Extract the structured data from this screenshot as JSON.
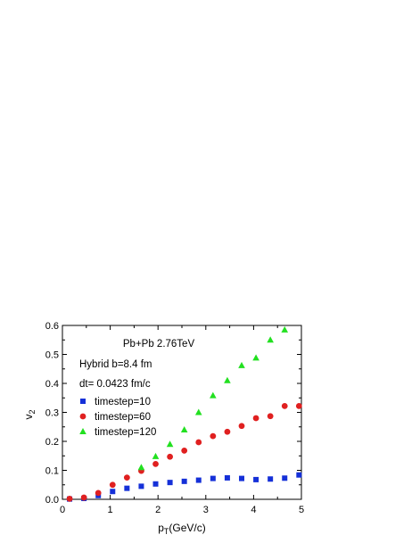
{
  "chart_data": {
    "type": "scatter",
    "xlabel_main": "p",
    "xlabel_sub": "T",
    "xlabel_rest": "(GeV/c)",
    "ylabel_main": "v",
    "ylabel_sub": "2",
    "xlim": [
      0,
      5
    ],
    "ylim": [
      0,
      0.6
    ],
    "xticks": [
      0,
      1,
      2,
      3,
      4,
      5
    ],
    "xtick_labels": [
      "0",
      "1",
      "2",
      "3",
      "4",
      "5"
    ],
    "yticks": [
      0.0,
      0.1,
      0.2,
      0.3,
      0.4,
      0.5,
      0.6
    ],
    "ytick_labels": [
      "0.0",
      "0.1",
      "0.2",
      "0.3",
      "0.4",
      "0.5",
      "0.6"
    ],
    "grid": false,
    "legend_position": "middle-left",
    "annotations": [
      "Pb+Pb 2.76TeV",
      "Hybrid b=8.4 fm",
      "dt= 0.0423 fm/c"
    ],
    "series": [
      {
        "name": "timestep=10",
        "marker": "square",
        "color": "#1530d8",
        "x": [
          0.15,
          0.45,
          0.75,
          1.05,
          1.35,
          1.65,
          1.95,
          2.25,
          2.55,
          2.85,
          3.15,
          3.45,
          3.75,
          4.05,
          4.35,
          4.65,
          4.95
        ],
        "y": [
          0.001,
          0.003,
          0.013,
          0.027,
          0.038,
          0.045,
          0.053,
          0.058,
          0.062,
          0.066,
          0.072,
          0.074,
          0.072,
          0.068,
          0.07,
          0.073,
          0.084
        ]
      },
      {
        "name": "timestep=60",
        "marker": "circle",
        "color": "#e02020",
        "x": [
          0.15,
          0.45,
          0.75,
          1.05,
          1.35,
          1.65,
          1.95,
          2.25,
          2.55,
          2.85,
          3.15,
          3.45,
          3.75,
          4.05,
          4.35,
          4.65,
          4.95
        ],
        "y": [
          0.002,
          0.006,
          0.022,
          0.05,
          0.075,
          0.098,
          0.122,
          0.147,
          0.168,
          0.197,
          0.218,
          0.233,
          0.253,
          0.28,
          0.287,
          0.322,
          0.322
        ]
      },
      {
        "name": "timestep=120",
        "marker": "triangle",
        "color": "#22e020",
        "x": [
          1.65,
          1.95,
          2.25,
          2.55,
          2.85,
          3.15,
          3.45,
          3.75,
          4.05,
          4.35,
          4.65
        ],
        "y": [
          0.11,
          0.148,
          0.19,
          0.24,
          0.3,
          0.358,
          0.41,
          0.462,
          0.488,
          0.55,
          0.585
        ]
      }
    ]
  }
}
